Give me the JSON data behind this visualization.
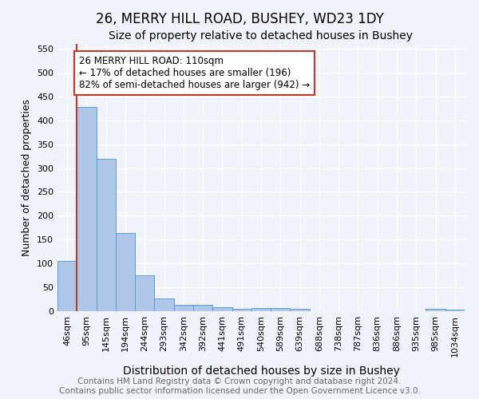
{
  "title": "26, MERRY HILL ROAD, BUSHEY, WD23 1DY",
  "subtitle": "Size of property relative to detached houses in Bushey",
  "xlabel": "Distribution of detached houses by size in Bushey",
  "ylabel": "Number of detached properties",
  "footnote1": "Contains HM Land Registry data © Crown copyright and database right 2024.",
  "footnote2": "Contains public sector information licensed under the Open Government Licence v3.0.",
  "categories": [
    "46sqm",
    "95sqm",
    "145sqm",
    "194sqm",
    "244sqm",
    "293sqm",
    "342sqm",
    "392sqm",
    "441sqm",
    "491sqm",
    "540sqm",
    "589sqm",
    "639sqm",
    "688sqm",
    "738sqm",
    "787sqm",
    "836sqm",
    "886sqm",
    "935sqm",
    "985sqm",
    "1034sqm"
  ],
  "values": [
    105,
    428,
    320,
    163,
    76,
    27,
    13,
    13,
    9,
    5,
    6,
    6,
    5,
    0,
    0,
    0,
    0,
    0,
    0,
    5,
    4
  ],
  "bar_color": "#aec6e8",
  "bar_edge_color": "#5b9bd5",
  "vline_color": "#c0392b",
  "annotation_text": "26 MERRY HILL ROAD: 110sqm\n← 17% of detached houses are smaller (196)\n82% of semi-detached houses are larger (942) →",
  "annotation_box_color": "white",
  "annotation_box_edge_color": "#c0392b",
  "ylim": [
    0,
    560
  ],
  "yticks": [
    0,
    50,
    100,
    150,
    200,
    250,
    300,
    350,
    400,
    450,
    500,
    550
  ],
  "background_color": "#f0f4fa",
  "grid_color": "white",
  "title_fontsize": 12,
  "subtitle_fontsize": 10,
  "xlabel_fontsize": 10,
  "ylabel_fontsize": 9,
  "tick_fontsize": 8,
  "annotation_fontsize": 8.5,
  "footnote_fontsize": 7.5
}
